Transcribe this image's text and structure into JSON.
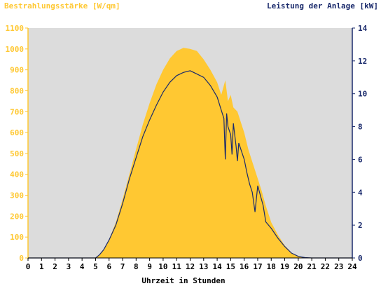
{
  "chart_data": {
    "type": "area",
    "title": "",
    "ylabel_left": "Bestrahlungsstärke [W/qm]",
    "ylabel_right": "Leistung der Anlage [kW]",
    "xlabel": "Uhrzeit in Stunden",
    "xlim": [
      0,
      24
    ],
    "ylim_left": [
      0,
      1100
    ],
    "ylim_right": [
      0,
      14
    ],
    "x_ticks": [
      "0",
      "1",
      "2",
      "3",
      "4",
      "5",
      "6",
      "7",
      "8",
      "9",
      "10",
      "11",
      "12",
      "13",
      "14",
      "15",
      "16",
      "17",
      "18",
      "19",
      "20",
      "21",
      "22",
      "23",
      "24"
    ],
    "y_left_ticks": [
      "0",
      "100",
      "200",
      "300",
      "400",
      "500",
      "600",
      "700",
      "800",
      "900",
      "1000",
      "1100"
    ],
    "y_right_ticks": [
      "0",
      "2",
      "4",
      "6",
      "8",
      "10",
      "12",
      "14"
    ],
    "grid": false,
    "colors": {
      "plot_background": "#dcdcdc",
      "irradiance_fill": "#ffc832",
      "power_line": "#1a2a6c",
      "left_axis": "#ffc832",
      "right_axis": "#1a2a6c"
    },
    "series": [
      {
        "name": "Bestrahlungsstärke [W/qm]",
        "axis": "left",
        "x": [
          0,
          5,
          5.3,
          5.6,
          6,
          6.5,
          7,
          7.5,
          8,
          8.5,
          9,
          9.5,
          10,
          10.5,
          11,
          11.5,
          12,
          12.5,
          13,
          13.5,
          14,
          14.3,
          14.6,
          14.8,
          15,
          15.2,
          15.5,
          15.8,
          16,
          16.3,
          16.6,
          17,
          17.3,
          17.6,
          18,
          18.5,
          19,
          19.5,
          20,
          20.5,
          21,
          24
        ],
        "values": [
          0,
          0,
          15,
          40,
          90,
          170,
          280,
          400,
          520,
          640,
          740,
          830,
          900,
          955,
          990,
          1005,
          1000,
          990,
          950,
          900,
          840,
          780,
          850,
          750,
          780,
          720,
          700,
          640,
          600,
          520,
          460,
          380,
          320,
          250,
          170,
          110,
          60,
          25,
          8,
          2,
          0,
          0
        ]
      },
      {
        "name": "Leistung der Anlage [kW]",
        "axis": "right",
        "x": [
          0,
          5,
          5.3,
          5.6,
          6,
          6.5,
          7,
          7.5,
          8,
          8.5,
          9,
          9.5,
          10,
          10.5,
          11,
          11.5,
          12,
          12.5,
          13,
          13.5,
          14,
          14.3,
          14.5,
          14.6,
          14.7,
          14.8,
          15,
          15.1,
          15.2,
          15.4,
          15.5,
          15.6,
          15.8,
          16,
          16.2,
          16.4,
          16.6,
          16.8,
          17,
          17.2,
          17.4,
          17.6,
          18,
          18.5,
          19,
          19.5,
          20,
          20.5,
          21,
          24
        ],
        "values": [
          0,
          0,
          0.2,
          0.5,
          1.1,
          2.0,
          3.3,
          4.8,
          6.1,
          7.4,
          8.4,
          9.3,
          10.1,
          10.7,
          11.1,
          11.3,
          11.4,
          11.2,
          11.0,
          10.5,
          9.8,
          9.0,
          8.5,
          6.0,
          8.8,
          8.0,
          7.5,
          6.3,
          8.2,
          6.8,
          5.9,
          7.0,
          6.5,
          6.0,
          5.2,
          4.5,
          4.0,
          2.8,
          4.4,
          3.8,
          3.2,
          2.2,
          1.8,
          1.2,
          0.7,
          0.3,
          0.1,
          0.02,
          0,
          0
        ]
      }
    ]
  }
}
